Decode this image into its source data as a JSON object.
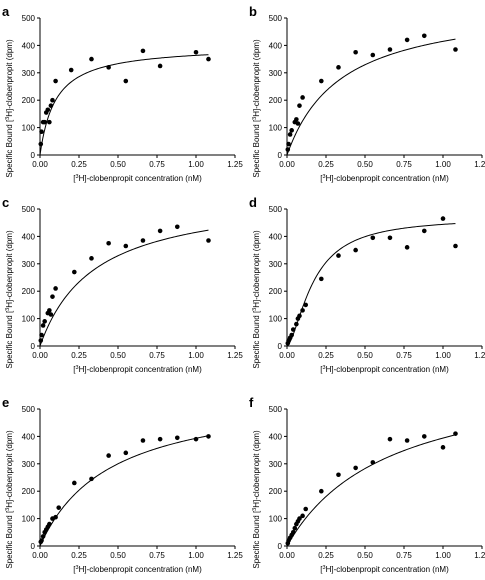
{
  "chart_data": [
    {
      "panel": "a",
      "type": "scatter",
      "xlabel": {
        "pre": "[",
        "sup": "3",
        "post": "H]-clobenpropit concentration (nM)"
      },
      "ylabel": {
        "pre": "Specific Bound [",
        "sup": "3",
        "post": "H]-clobenpropit (dpm)"
      },
      "xlim": [
        0,
        1.25
      ],
      "ylim": [
        0,
        500
      ],
      "xticks": [
        "0.00",
        "0.25",
        "0.50",
        "0.75",
        "1.00",
        "1.25"
      ],
      "yticks": [
        "0",
        "100",
        "200",
        "300",
        "400",
        "500"
      ],
      "x": [
        0.005,
        0.01,
        0.02,
        0.03,
        0.04,
        0.05,
        0.06,
        0.07,
        0.08,
        0.1,
        0.2,
        0.33,
        0.44,
        0.55,
        0.66,
        0.77,
        1.0,
        1.08
      ],
      "y": [
        40,
        85,
        120,
        120,
        155,
        165,
        120,
        180,
        200,
        270,
        310,
        350,
        320,
        270,
        380,
        325,
        375,
        350
      ],
      "fit": {
        "bmax": 400,
        "kd": 0.1
      }
    },
    {
      "panel": "b",
      "type": "scatter",
      "xlabel": {
        "pre": "[",
        "sup": "3",
        "post": "H]-clobenpropit concentration (nM)"
      },
      "ylabel": {
        "pre": "Specific Bound [",
        "sup": "3",
        "post": "H]-clobenpropit (dpm)"
      },
      "xlim": [
        0,
        1.25
      ],
      "ylim": [
        0,
        500
      ],
      "xticks": [
        "0.00",
        "0.25",
        "0.50",
        "0.75",
        "1.00",
        "1.25"
      ],
      "yticks": [
        "0",
        "100",
        "200",
        "300",
        "400",
        "500"
      ],
      "x": [
        0.005,
        0.01,
        0.02,
        0.03,
        0.05,
        0.06,
        0.07,
        0.08,
        0.1,
        0.22,
        0.33,
        0.44,
        0.55,
        0.66,
        0.77,
        0.88,
        1.08
      ],
      "y": [
        20,
        40,
        75,
        90,
        120,
        130,
        115,
        180,
        210,
        270,
        320,
        375,
        365,
        385,
        420,
        435,
        385
      ],
      "fit": {
        "bmax": 560,
        "kd": 0.35
      }
    },
    {
      "panel": "c",
      "type": "scatter",
      "xlabel": {
        "pre": "[",
        "sup": "3",
        "post": "H]-clobenpropit concentration (nM)"
      },
      "ylabel": {
        "pre": "Specific Bound [",
        "sup": "3",
        "post": "H]-clobenpropit (dpm)"
      },
      "xlim": [
        0,
        1.25
      ],
      "ylim": [
        0,
        500
      ],
      "xticks": [
        "0.00",
        "0.25",
        "0.50",
        "0.75",
        "1.00",
        "1.25"
      ],
      "yticks": [
        "0",
        "100",
        "200",
        "300",
        "400",
        "500"
      ],
      "x": [
        0.005,
        0.01,
        0.02,
        0.03,
        0.05,
        0.06,
        0.07,
        0.08,
        0.1,
        0.22,
        0.33,
        0.44,
        0.55,
        0.66,
        0.77,
        0.88,
        1.08
      ],
      "y": [
        20,
        40,
        75,
        90,
        120,
        130,
        115,
        180,
        210,
        270,
        320,
        375,
        365,
        385,
        420,
        435,
        385
      ],
      "fit": {
        "bmax": 560,
        "kd": 0.35
      }
    },
    {
      "panel": "d",
      "type": "scatter",
      "xlabel": {
        "pre": "[",
        "sup": "3",
        "post": "H]-clobenpropit concentration (nM)"
      },
      "ylabel": {
        "pre": "Specific Bound [",
        "sup": "3",
        "post": "H]-clobenpropit (dpm)"
      },
      "xlim": [
        0,
        1.25
      ],
      "ylim": [
        0,
        500
      ],
      "xticks": [
        "0.00",
        "0.25",
        "0.50",
        "0.75",
        "1.00",
        "1.25"
      ],
      "yticks": [
        "0",
        "100",
        "200",
        "300",
        "400",
        "500"
      ],
      "x": [
        0.005,
        0.01,
        0.02,
        0.03,
        0.04,
        0.06,
        0.07,
        0.08,
        0.1,
        0.12,
        0.22,
        0.33,
        0.44,
        0.55,
        0.66,
        0.77,
        0.88,
        1.0,
        1.08
      ],
      "y": [
        10,
        20,
        30,
        40,
        60,
        80,
        100,
        110,
        130,
        150,
        245,
        330,
        350,
        395,
        395,
        360,
        420,
        465,
        365
      ],
      "fit": {
        "bmax": 470,
        "kd": 0.17,
        "hill": 1.6
      }
    },
    {
      "panel": "e",
      "type": "scatter",
      "xlabel": {
        "pre": "[",
        "sup": "3",
        "post": "H]-clobenpropit concentration (nM)"
      },
      "ylabel": {
        "pre": "Specific Bound [",
        "sup": "3",
        "post": "H]-clobenpropit (dpm)"
      },
      "xlim": [
        0,
        1.25
      ],
      "ylim": [
        0,
        500
      ],
      "xticks": [
        "0.00",
        "0.25",
        "0.50",
        "0.75",
        "1.00",
        "1.25"
      ],
      "yticks": [
        "0",
        "100",
        "200",
        "300",
        "400",
        "500"
      ],
      "x": [
        0.005,
        0.01,
        0.02,
        0.03,
        0.04,
        0.05,
        0.06,
        0.08,
        0.1,
        0.12,
        0.22,
        0.33,
        0.44,
        0.55,
        0.66,
        0.77,
        0.88,
        1.0,
        1.08
      ],
      "y": [
        15,
        20,
        35,
        50,
        60,
        70,
        80,
        100,
        105,
        140,
        230,
        245,
        330,
        340,
        385,
        390,
        395,
        390,
        400
      ],
      "fit": {
        "bmax": 570,
        "kd": 0.45
      }
    },
    {
      "panel": "f",
      "type": "scatter",
      "xlabel": {
        "pre": "[",
        "sup": "3",
        "post": "H]-clobenpropit concentration (nM)"
      },
      "ylabel": {
        "pre": "Specific Bound [",
        "sup": "3",
        "post": "H]-clobenpropit (dpm)"
      },
      "xlim": [
        0,
        1.25
      ],
      "ylim": [
        0,
        500
      ],
      "xticks": [
        "0.00",
        "0.25",
        "0.50",
        "0.75",
        "1.00",
        "1.25"
      ],
      "yticks": [
        "0",
        "100",
        "200",
        "300",
        "400",
        "500"
      ],
      "x": [
        0.005,
        0.01,
        0.02,
        0.03,
        0.04,
        0.05,
        0.06,
        0.07,
        0.08,
        0.1,
        0.12,
        0.22,
        0.33,
        0.44,
        0.55,
        0.66,
        0.77,
        0.88,
        1.0,
        1.08
      ],
      "y": [
        10,
        20,
        30,
        40,
        50,
        65,
        80,
        90,
        100,
        110,
        135,
        200,
        260,
        285,
        305,
        390,
        385,
        400,
        360,
        410
      ],
      "fit": {
        "bmax": 650,
        "kd": 0.65
      }
    }
  ]
}
